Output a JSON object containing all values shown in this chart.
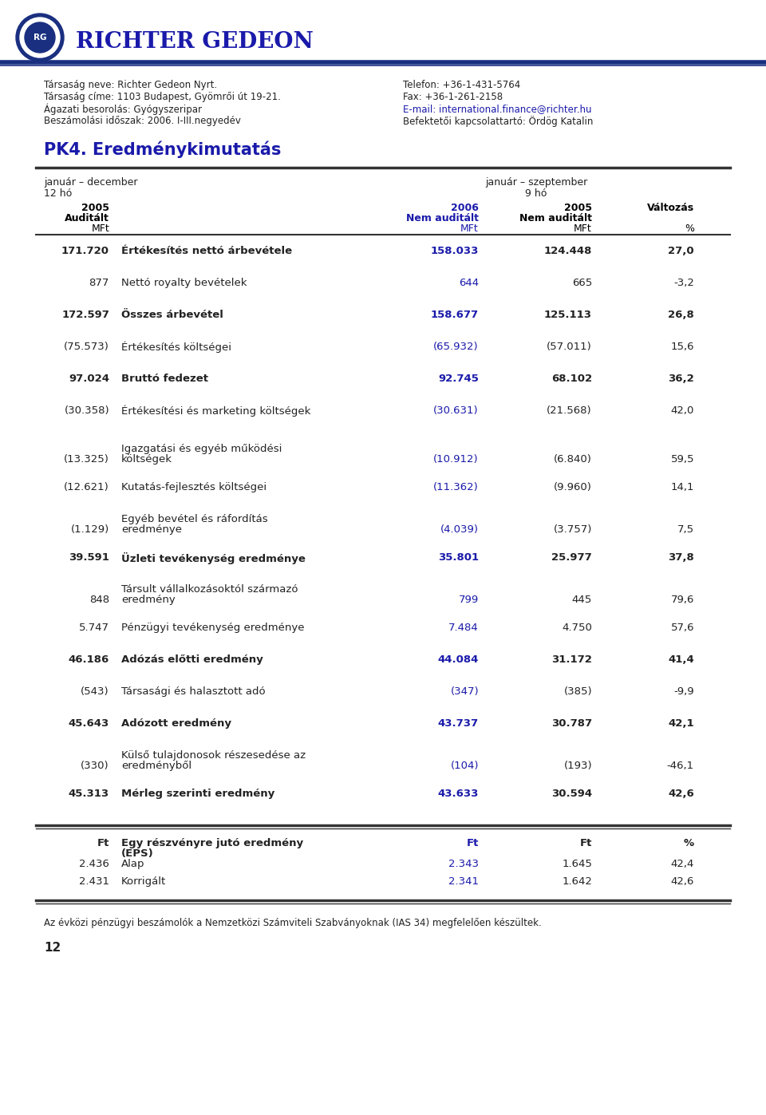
{
  "title": "PK4. Eredménykimutatás",
  "company_name": "RICHTER GEDEON",
  "company_info_left": [
    "Társaság neve: Richter Gedeon Nyrt.",
    "Társaság címe: 1103 Budapest, Gyömrői út 19-21.",
    "Ágazati besorolás: Gyógyszeripar",
    "Beszámolási időszak: 2006. I-III.negyedév"
  ],
  "company_info_right": [
    "Telefon: +36-1-431-5764",
    "Fax: +36-1-261-2158",
    "E-mail: international.finance@richter.hu",
    "Befektetői kapcsolattartó: Ördög Katalin"
  ],
  "email_line_index": 2,
  "header_left1": "január – december",
  "header_left2": "12 hó",
  "header_right1": "január – szeptember",
  "header_right2": "9 hó",
  "col_headers": [
    [
      "2005",
      "Auditált",
      "MFt"
    ],
    [
      "2006",
      "Nem auditált",
      "MFt"
    ],
    [
      "2005",
      "Nem auditált",
      "MFt"
    ],
    [
      "Változás",
      "",
      "%"
    ]
  ],
  "col_colors": [
    "#000000",
    "#1a1aaa",
    "#000000",
    "#000000"
  ],
  "combined_rows": [
    {
      "c1": "171.720",
      "label": "Értékesítés nettó árbevétele",
      "c3": "158.033",
      "c4": "124.448",
      "c5": "27,0",
      "bold": true,
      "nlines": 1
    },
    {
      "c1": "877",
      "label": "Nettó royalty bevételek",
      "c3": "644",
      "c4": "665",
      "c5": "-3,2",
      "bold": false,
      "nlines": 1
    },
    {
      "c1": "172.597",
      "label": "Összes árbevétel",
      "c3": "158.677",
      "c4": "125.113",
      "c5": "26,8",
      "bold": true,
      "nlines": 1
    },
    {
      "c1": "(75.573)",
      "label": "Értékesítés költségei",
      "c3": "(65.932)",
      "c4": "(57.011)",
      "c5": "15,6",
      "bold": false,
      "nlines": 1
    },
    {
      "c1": "97.024",
      "label": "Bruttó fedezet",
      "c3": "92.745",
      "c4": "68.102",
      "c5": "36,2",
      "bold": true,
      "nlines": 1
    },
    {
      "c1": "(30.358)",
      "label": "Értékesítési és marketing költségek",
      "c3": "(30.631)",
      "c4": "(21.568)",
      "c5": "42,0",
      "bold": false,
      "nlines": 2
    },
    {
      "c1": "(13.325)",
      "label": "Igazgatási és egyéb működési\nköltségek",
      "c3": "(10.912)",
      "c4": "(6.840)",
      "c5": "59,5",
      "bold": false,
      "nlines": 2
    },
    {
      "c1": "(12.621)",
      "label": "Kutatás-fejlesztés költségei",
      "c3": "(11.362)",
      "c4": "(9.960)",
      "c5": "14,1",
      "bold": false,
      "nlines": 1
    },
    {
      "c1": "(1.129)",
      "label": "Egyéb bevétel és ráfordítás\neredménye",
      "c3": "(4.039)",
      "c4": "(3.757)",
      "c5": "7,5",
      "bold": false,
      "nlines": 2
    },
    {
      "c1": "39.591",
      "label": "Üzleti tevékenység eredménye",
      "c3": "35.801",
      "c4": "25.977",
      "c5": "37,8",
      "bold": true,
      "nlines": 1
    },
    {
      "c1": "848",
      "label": "Társult vállalkozásoktól származó\neredmény",
      "c3": "799",
      "c4": "445",
      "c5": "79,6",
      "bold": false,
      "nlines": 2
    },
    {
      "c1": "5.747",
      "label": "Pénzügyi tevékenység eredménye",
      "c3": "7.484",
      "c4": "4.750",
      "c5": "57,6",
      "bold": false,
      "nlines": 1
    },
    {
      "c1": "46.186",
      "label": "Adózás előtti eredmény",
      "c3": "44.084",
      "c4": "31.172",
      "c5": "41,4",
      "bold": true,
      "nlines": 1
    },
    {
      "c1": "(543)",
      "label": "Társasági és halasztott adó",
      "c3": "(347)",
      "c4": "(385)",
      "c5": "-9,9",
      "bold": false,
      "nlines": 1
    },
    {
      "c1": "45.643",
      "label": "Adózott eredmény",
      "c3": "43.737",
      "c4": "30.787",
      "c5": "42,1",
      "bold": true,
      "nlines": 1
    },
    {
      "c1": "(330)",
      "label": "Külső tulajdonosok részesedése az\neredményből",
      "c3": "(104)",
      "c4": "(193)",
      "c5": "-46,1",
      "bold": false,
      "nlines": 2
    },
    {
      "c1": "45.313",
      "label": "Mérleg szerinti eredmény",
      "c3": "43.633",
      "c4": "30.594",
      "c5": "42,6",
      "bold": true,
      "nlines": 1
    }
  ],
  "eps_header": {
    "c1": "Ft",
    "label_line1": "Egy részvényre jutó eredmény",
    "label_line2": "(EPS)",
    "c3": "Ft",
    "c4": "Ft",
    "c5": "%"
  },
  "eps_rows": [
    {
      "c1": "2.436",
      "label": "Alap",
      "c3": "2.343",
      "c4": "1.645",
      "c5": "42,4"
    },
    {
      "c1": "2.431",
      "label": "Korrigált",
      "c3": "2.341",
      "c4": "1.642",
      "c5": "42,6"
    }
  ],
  "footer": "Az évközi pénzügyi beszámolók a Nemzetközi Számviteli Szabványoknak (IAS 34) megfelelően készültek.",
  "page_number": "12",
  "blue": "#1a1aaa",
  "black": "#222222",
  "line_color": "#333333"
}
